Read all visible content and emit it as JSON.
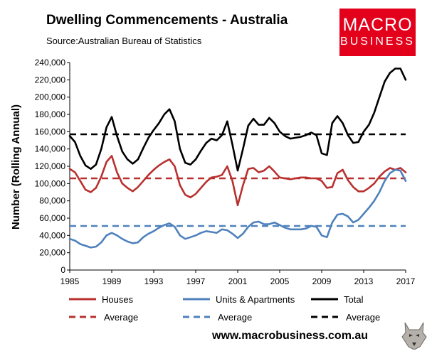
{
  "header": {
    "title": "Dwelling Commencements - Australia",
    "source": "Source:Australian Bureau of Statistics"
  },
  "logo": {
    "line1": "MACRO",
    "line2": "BUSINESS",
    "color": "#e3001b"
  },
  "footer": {
    "url": "www.macrobusiness.com.au"
  },
  "chart_data": {
    "type": "line",
    "ylabel": "Number (Rolling Annual)",
    "ylim": [
      0,
      240000
    ],
    "xlim": [
      1985,
      2017
    ],
    "yticks": [
      "0",
      "20,000",
      "40,000",
      "60,000",
      "80,000",
      "100,000",
      "120,000",
      "140,000",
      "160,000",
      "180,000",
      "200,000",
      "220,000",
      "240,000"
    ],
    "xticks": [
      "1985",
      "1989",
      "1993",
      "1997",
      "2001",
      "2005",
      "2009",
      "2013",
      "2017"
    ],
    "grid": false,
    "legend_position": "bottom",
    "series": [
      {
        "name": "Houses",
        "color": "#b8312f",
        "dash": "solid",
        "x": [
          1985,
          1985.5,
          1986,
          1986.5,
          1987,
          1987.5,
          1988,
          1988.5,
          1989,
          1989.5,
          1990,
          1990.5,
          1991,
          1991.5,
          1992,
          1992.5,
          1993,
          1993.5,
          1994,
          1994.5,
          1995,
          1995.5,
          1996,
          1996.5,
          1997,
          1997.5,
          1998,
          1998.5,
          1999,
          1999.5,
          2000,
          2000.5,
          2001,
          2001.5,
          2002,
          2002.5,
          2003,
          2003.5,
          2004,
          2004.5,
          2005,
          2005.5,
          2006,
          2006.5,
          2007,
          2007.5,
          2008,
          2008.5,
          2009,
          2009.5,
          2010,
          2010.5,
          2011,
          2011.5,
          2012,
          2012.5,
          2013,
          2013.5,
          2014,
          2014.5,
          2015,
          2015.5,
          2016,
          2016.5,
          2017
        ],
        "y": [
          117000,
          113000,
          103000,
          93000,
          90000,
          95000,
          108000,
          125000,
          132000,
          113000,
          100000,
          95000,
          91000,
          96000,
          103000,
          110000,
          116000,
          121000,
          125000,
          128000,
          120000,
          98000,
          87000,
          84000,
          88000,
          95000,
          102000,
          107000,
          108000,
          110000,
          120000,
          103000,
          75000,
          98000,
          117000,
          118000,
          113000,
          115000,
          120000,
          114000,
          107000,
          106000,
          105000,
          106000,
          107000,
          107000,
          106000,
          106000,
          103000,
          95000,
          96000,
          112000,
          116000,
          104000,
          96000,
          91000,
          91000,
          95000,
          100000,
          108000,
          114000,
          118000,
          116000,
          118000,
          113000
        ]
      },
      {
        "name": "Units & Apartments",
        "color": "#4f81bd",
        "dash": "solid",
        "x": [
          1985,
          1985.5,
          1986,
          1986.5,
          1987,
          1987.5,
          1988,
          1988.5,
          1989,
          1989.5,
          1990,
          1990.5,
          1991,
          1991.5,
          1992,
          1992.5,
          1993,
          1993.5,
          1994,
          1994.5,
          1995,
          1995.5,
          1996,
          1996.5,
          1997,
          1997.5,
          1998,
          1998.5,
          1999,
          1999.5,
          2000,
          2000.5,
          2001,
          2001.5,
          2002,
          2002.5,
          2003,
          2003.5,
          2004,
          2004.5,
          2005,
          2005.5,
          2006,
          2006.5,
          2007,
          2007.5,
          2008,
          2008.5,
          2009,
          2009.5,
          2010,
          2010.5,
          2011,
          2011.5,
          2012,
          2012.5,
          2013,
          2013.5,
          2014,
          2014.5,
          2015,
          2015.5,
          2016,
          2016.5,
          2017
        ],
        "y": [
          36000,
          34000,
          30000,
          28000,
          26000,
          27000,
          32000,
          40000,
          43000,
          40000,
          36000,
          33000,
          31000,
          32000,
          38000,
          42000,
          45000,
          49000,
          52000,
          54000,
          50000,
          40000,
          36000,
          38000,
          40000,
          43000,
          45000,
          44000,
          43000,
          47000,
          46000,
          42000,
          37000,
          42000,
          50000,
          55000,
          56000,
          53000,
          53000,
          55000,
          52000,
          49000,
          47000,
          47000,
          47000,
          48000,
          51000,
          50000,
          40000,
          38000,
          55000,
          64000,
          65000,
          62000,
          55000,
          58000,
          65000,
          72000,
          80000,
          90000,
          103000,
          112000,
          116000,
          115000,
          103000
        ]
      },
      {
        "name": "Total",
        "color": "#000000",
        "dash": "solid",
        "x": [
          1985,
          1985.5,
          1986,
          1986.5,
          1987,
          1987.5,
          1988,
          1988.5,
          1989,
          1989.5,
          1990,
          1990.5,
          1991,
          1991.5,
          1992,
          1992.5,
          1993,
          1993.5,
          1994,
          1994.5,
          1995,
          1995.5,
          1996,
          1996.5,
          1997,
          1997.5,
          1998,
          1998.5,
          1999,
          1999.5,
          2000,
          2000.5,
          2001,
          2001.5,
          2002,
          2002.5,
          2003,
          2003.5,
          2004,
          2004.5,
          2005,
          2005.5,
          2006,
          2006.5,
          2007,
          2007.5,
          2008,
          2008.5,
          2009,
          2009.5,
          2010,
          2010.5,
          2011,
          2011.5,
          2012,
          2012.5,
          2013,
          2013.5,
          2014,
          2014.5,
          2015,
          2015.5,
          2016,
          2016.5,
          2017
        ],
        "y": [
          155000,
          148000,
          132000,
          121000,
          117000,
          122000,
          140000,
          165000,
          177000,
          155000,
          137000,
          128000,
          123000,
          128000,
          141000,
          153000,
          162000,
          170000,
          180000,
          186000,
          172000,
          140000,
          124000,
          122000,
          128000,
          138000,
          147000,
          152000,
          150000,
          156000,
          172000,
          145000,
          115000,
          140000,
          167000,
          175000,
          168000,
          168000,
          176000,
          170000,
          160000,
          155000,
          152000,
          153000,
          154000,
          156000,
          159000,
          156000,
          135000,
          133000,
          170000,
          178000,
          170000,
          156000,
          147000,
          148000,
          160000,
          168000,
          182000,
          200000,
          218000,
          228000,
          233000,
          233000,
          220000
        ]
      }
    ],
    "averages": [
      {
        "name": "Average",
        "color": "#b8312f",
        "dash": "dashed",
        "value": 106000
      },
      {
        "name": "Average",
        "color": "#4f81bd",
        "dash": "dashed",
        "value": 51000
      },
      {
        "name": "Average",
        "color": "#000000",
        "dash": "dashed",
        "value": 157000
      }
    ]
  }
}
